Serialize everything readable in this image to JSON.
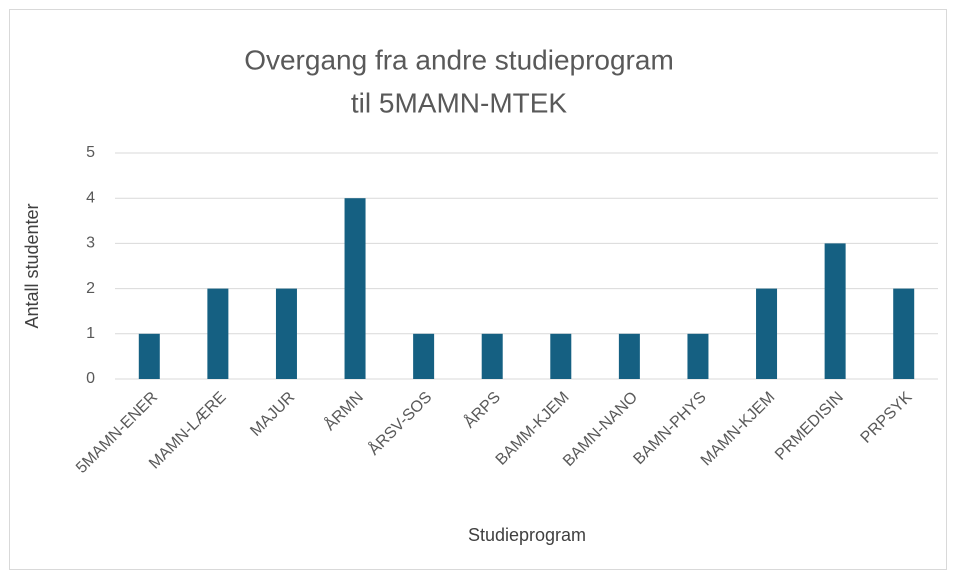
{
  "chart_data": {
    "type": "bar",
    "title": [
      "Overgang fra andre studieprogram",
      "til 5MAMN-MTEK"
    ],
    "x_label": "Studieprogram",
    "y_label": "Antall studenter",
    "categories": [
      "5MAMN-ENER",
      "MAMN-LÆRE",
      "MAJUR",
      "ÅRMN",
      "ÅRSV-SOS",
      "ÅRPS",
      "BAMM-KJEM",
      "BAMN-NANO",
      "BAMN-PHYS",
      "MAMN-KJEM",
      "PRMEDISIN",
      "PRPSYK"
    ],
    "values": [
      1,
      2,
      2,
      4,
      1,
      1,
      1,
      1,
      1,
      2,
      3,
      2
    ],
    "color": "#156082",
    "ylim": [
      0,
      5
    ],
    "yticks": [
      0,
      1,
      2,
      3,
      4,
      5
    ],
    "grid": true
  }
}
